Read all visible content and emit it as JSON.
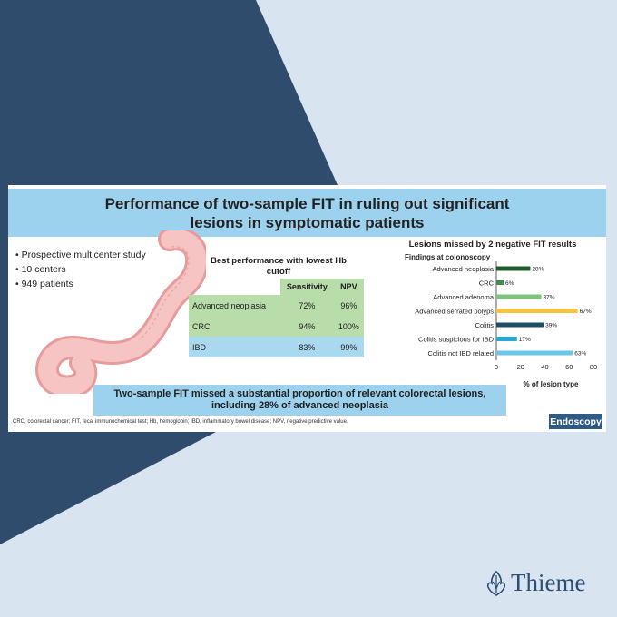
{
  "title": "Performance of two-sample FIT in ruling out significant lesions in symptomatic patients",
  "study_facts": [
    "Prospective multicenter study",
    "10 centers",
    "949 patients"
  ],
  "table": {
    "title": "Best performance with lowest Hb cutoff",
    "headers": [
      "",
      "Sensitivity",
      "NPV"
    ],
    "rows": [
      {
        "label": "Advanced neoplasia",
        "sensitivity": "72%",
        "npv": "96%"
      },
      {
        "label": "CRC",
        "sensitivity": "94%",
        "npv": "100%"
      },
      {
        "label": "IBD",
        "sensitivity": "83%",
        "npv": "99%"
      }
    ]
  },
  "chart_data": {
    "type": "bar",
    "orientation": "horizontal",
    "title": "Lesions missed by 2 negative FIT results",
    "category_header": "Findings at colonoscopy",
    "categories": [
      "Advanced neoplasia",
      "CRC",
      "Advanced adenoma",
      "Advanced serrated polyps",
      "Colitis",
      "Colitis suspicious for IBD",
      "Colitis not IBD related"
    ],
    "values": [
      28,
      6,
      37,
      67,
      39,
      17,
      63
    ],
    "value_labels": [
      "28%",
      "6%",
      "37%",
      "67%",
      "39%",
      "17%",
      "63%"
    ],
    "colors": [
      "#1e5c2c",
      "#3f8f4a",
      "#7dc47b",
      "#f5c242",
      "#1c4f66",
      "#27a9d6",
      "#69c6e8"
    ],
    "xlabel": "% of lesion type",
    "xlim": [
      0,
      80
    ],
    "xticks": [
      "0",
      "20",
      "40",
      "60",
      "80"
    ],
    "grid": false
  },
  "conclusion": "Two-sample FIT missed a substantial proportion of relevant colorectal lesions, including 28% of advanced neoplasia",
  "footnote": "CRC, colorectal cancer; FIT, fecal immunochemical test; Hb, hemoglobin; IBD, inflammatory bowel disease; NPV, negative predictive value.",
  "journal": "Endoscopy",
  "publisher": "Thieme",
  "colors": {
    "background": "#d9e4f1",
    "dark_band": "#2f4c6d",
    "banner": "#9dd2ef",
    "journal_badge": "#2f5b84"
  }
}
